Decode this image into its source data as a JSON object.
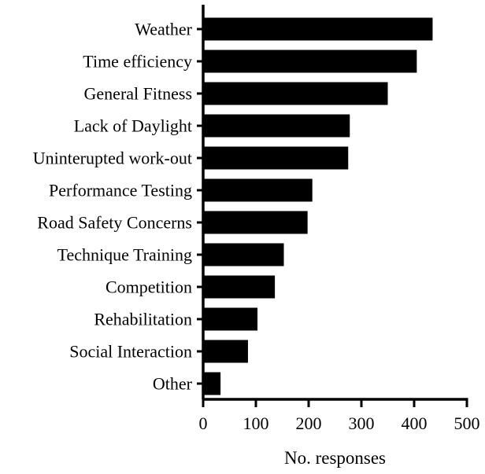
{
  "chart_data": {
    "type": "bar",
    "orientation": "horizontal",
    "title": "",
    "xlabel": "No. responses",
    "ylabel": "",
    "xlim": [
      0,
      500
    ],
    "xticks": [
      0,
      100,
      200,
      300,
      400,
      500
    ],
    "grid": false,
    "categories": [
      "Weather",
      "Time efficiency",
      "General Fitness",
      "Lack of Daylight",
      "Uninterupted work-out",
      "Performance Testing",
      "Road Safety Concerns",
      "Technique Training",
      "Competition",
      "Rehabilitation",
      "Social Interaction",
      "Other"
    ],
    "values": [
      435,
      405,
      350,
      278,
      275,
      207,
      198,
      153,
      136,
      103,
      85,
      33
    ],
    "bar_color": "#000000"
  }
}
